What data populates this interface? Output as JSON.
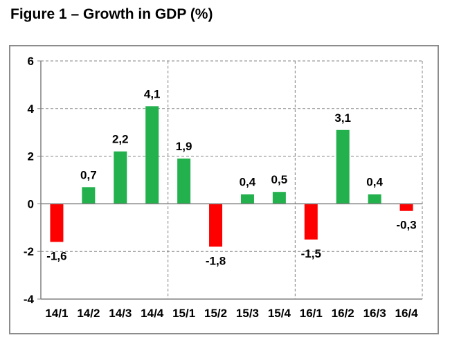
{
  "figure_title": "Figure 1 – Growth in GDP (%)",
  "colors": {
    "positive": "#22b14c",
    "negative": "#ff0000",
    "gridline": "#808080",
    "axis": "#808080"
  },
  "chart_data": {
    "type": "bar",
    "title": "Figure 1 – Growth in GDP (%)",
    "xlabel": "",
    "ylabel": "",
    "categories": [
      "14/1",
      "14/2",
      "14/3",
      "14/4",
      "15/1",
      "15/2",
      "15/3",
      "15/4",
      "16/1",
      "16/2",
      "16/3",
      "16/4"
    ],
    "values": [
      -1.6,
      0.7,
      2.2,
      4.1,
      1.9,
      -1.8,
      0.4,
      0.5,
      -1.5,
      3.1,
      0.4,
      -0.3
    ],
    "data_labels": [
      "-1,6",
      "0,7",
      "2,2",
      "4,1",
      "1,9",
      "-1,8",
      "0,4",
      "0,5",
      "-1,5",
      "3,1",
      "0,4",
      "-0,3"
    ],
    "ylim": [
      -4,
      6
    ],
    "yticks": [
      "-4",
      "-2",
      "0",
      "2",
      "4",
      "6"
    ],
    "grid": "dashed horizontal gridlines; dashed vertical separators between years",
    "legend": "none"
  }
}
